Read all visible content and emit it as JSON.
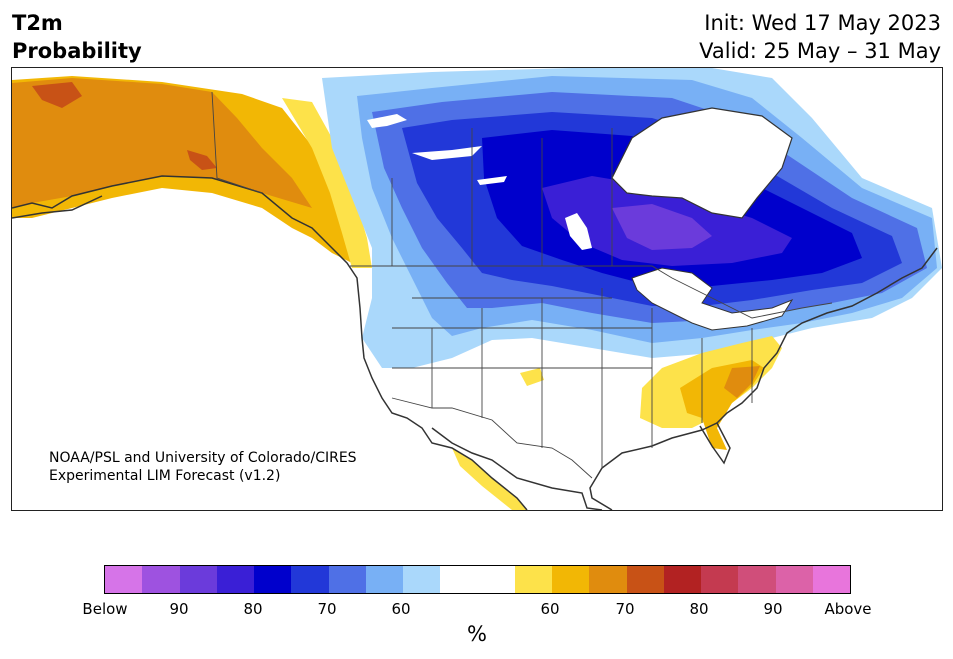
{
  "header": {
    "variable_line1": "T2m",
    "variable_line2": "Probability",
    "init_text": "Init: Wed 17 May 2023",
    "valid_text": "Valid: 25 May – 31 May"
  },
  "map": {
    "region": "North America",
    "credit_line1": "NOAA/PSL and University of Colorado/CIRES",
    "credit_line2": "Experimental LIM Forecast (v1.2)",
    "below_colors": {
      "b90": "#3a1fd6",
      "b80": "#0000cc",
      "b70": "#2238d8",
      "b60": "#4f70e6",
      "b50": "#78b0f5",
      "b40": "#aad8fb",
      "b95": "#6b3bdb"
    },
    "above_colors": {
      "a40": "#fde24a",
      "a50": "#f2b705",
      "a60": "#e08c0e",
      "a70": "#c85216"
    },
    "land_color": "#ffffff",
    "water_color": "#ffffff",
    "border_color": "#333333"
  },
  "colorbar": {
    "unit": "%",
    "colors": [
      "#d674e8",
      "#9e52e0",
      "#6b3bdb",
      "#3a1fd6",
      "#0000cc",
      "#2238d8",
      "#4f70e6",
      "#78b0f5",
      "#aad8fb",
      "#ffffff",
      "#ffffff",
      "#fde24a",
      "#f2b705",
      "#e08c0e",
      "#c85216",
      "#b22222",
      "#c43a50",
      "#d04e7a",
      "#dc62a8",
      "#e875dc"
    ],
    "tick_labels": [
      "Below",
      "90",
      "80",
      "70",
      "60",
      "60",
      "70",
      "80",
      "90",
      "Above"
    ]
  }
}
